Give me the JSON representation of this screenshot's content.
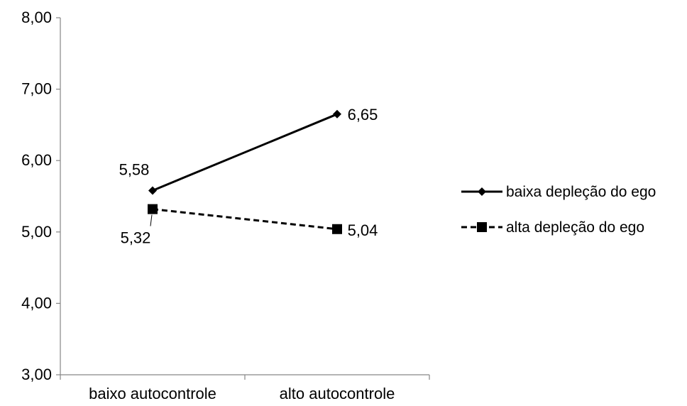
{
  "chart_data": {
    "type": "line",
    "categories": [
      "baixo autocontrole",
      "alto autocontrole"
    ],
    "series": [
      {
        "name": "baixa depleção do ego",
        "values": [
          5.58,
          6.65
        ],
        "labels": [
          "5,58",
          "6,65"
        ],
        "marker": "diamond",
        "line_style": "solid",
        "color": "#000000"
      },
      {
        "name": "alta depleção do ego",
        "values": [
          5.32,
          5.04
        ],
        "labels": [
          "5,32",
          "5,04"
        ],
        "marker": "square",
        "line_style": "dashed",
        "color": "#000000"
      }
    ],
    "ylim": [
      3,
      8
    ],
    "yticks": [
      3,
      4,
      5,
      6,
      7,
      8
    ],
    "ytick_labels": [
      "3,00",
      "4,00",
      "5,00",
      "6,00",
      "7,00",
      "8,00"
    ],
    "title": "",
    "xlabel": "",
    "ylabel": "",
    "grid": false,
    "legend_position": "right"
  }
}
